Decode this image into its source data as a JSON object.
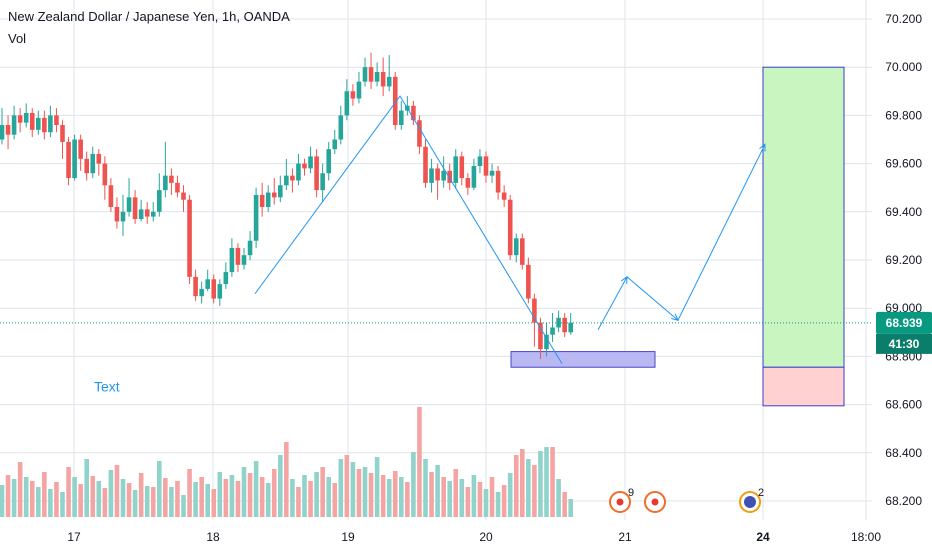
{
  "header": {
    "title": "New Zealand Dollar / Japanese Yen, 1h, OANDA",
    "indicator": "Vol"
  },
  "price_badge": {
    "value": "68.939",
    "countdown": "41:30"
  },
  "annotation": {
    "text": "Text"
  },
  "event_markers": [
    {
      "icon": "flag-event-icon",
      "count": "9"
    },
    {
      "icon": "target-event-icon",
      "count": ""
    },
    {
      "icon": "avatar-event-icon",
      "count": "2"
    }
  ],
  "colors": {
    "up": "#26a69a",
    "down": "#ef5350",
    "vol_up": "#8fd3cb",
    "vol_down": "#f5a4a4",
    "drawing": "#2196f3",
    "badge": "#089981",
    "grid": "#e0e3eb",
    "target": "#c8f5c0",
    "stop": "#ffd1d1",
    "zone": "#b9b8f2"
  },
  "chart_data": {
    "type": "candlestick",
    "symbol": "NZDJPY",
    "interval": "1h",
    "x_tick_labels": [
      "17",
      "18",
      "19",
      "20",
      "21",
      "24",
      "18:00"
    ],
    "y_tick_labels": [
      "70.200",
      "70.000",
      "69.800",
      "69.600",
      "69.400",
      "69.200",
      "69.000",
      "68.800",
      "68.600",
      "68.400",
      "68.200"
    ],
    "ylim": [
      68.1,
      70.2
    ],
    "last_price": 68.939,
    "grid": true,
    "candles": [
      [
        69.7,
        69.76,
        69.83,
        69.68
      ],
      [
        69.76,
        69.72,
        69.8,
        69.66
      ],
      [
        69.72,
        69.8,
        69.84,
        69.7
      ],
      [
        69.8,
        69.77,
        69.83,
        69.73
      ],
      [
        69.77,
        69.81,
        69.85,
        69.75
      ],
      [
        69.81,
        69.74,
        69.83,
        69.71
      ],
      [
        69.74,
        69.79,
        69.82,
        69.72
      ],
      [
        69.79,
        69.73,
        69.82,
        69.7
      ],
      [
        69.73,
        69.8,
        69.84,
        69.71
      ],
      [
        69.8,
        69.76,
        69.83,
        69.73
      ],
      [
        69.76,
        69.69,
        69.78,
        69.62
      ],
      [
        69.69,
        69.54,
        69.71,
        69.51
      ],
      [
        69.54,
        69.7,
        69.72,
        69.53
      ],
      [
        69.7,
        69.62,
        69.72,
        69.57
      ],
      [
        69.62,
        69.56,
        69.65,
        69.53
      ],
      [
        69.56,
        69.64,
        69.67,
        69.54
      ],
      [
        69.64,
        69.6,
        69.66,
        69.55
      ],
      [
        69.6,
        69.51,
        69.63,
        69.45
      ],
      [
        69.51,
        69.42,
        69.54,
        69.4
      ],
      [
        69.42,
        69.36,
        69.46,
        69.33
      ],
      [
        69.36,
        69.4,
        69.47,
        69.3
      ],
      [
        69.4,
        69.46,
        69.54,
        69.38
      ],
      [
        69.46,
        69.37,
        69.49,
        69.35
      ],
      [
        69.37,
        69.41,
        69.45,
        69.36
      ],
      [
        69.41,
        69.38,
        69.44,
        69.35
      ],
      [
        69.38,
        69.4,
        69.44,
        69.36
      ],
      [
        69.4,
        69.49,
        69.56,
        69.38
      ],
      [
        69.49,
        69.55,
        69.69,
        69.46
      ],
      [
        69.55,
        69.52,
        69.58,
        69.47
      ],
      [
        69.52,
        69.48,
        69.55,
        69.46
      ],
      [
        69.48,
        69.45,
        69.51,
        69.4
      ],
      [
        69.45,
        69.13,
        69.47,
        69.1
      ],
      [
        69.13,
        69.05,
        69.16,
        69.03
      ],
      [
        69.05,
        69.08,
        69.11,
        69.02
      ],
      [
        69.08,
        69.12,
        69.16,
        69.07
      ],
      [
        69.12,
        69.04,
        69.14,
        69.02
      ],
      [
        69.04,
        69.1,
        69.12,
        69.01
      ],
      [
        69.1,
        69.15,
        69.19,
        69.08
      ],
      [
        69.15,
        69.25,
        69.29,
        69.13
      ],
      [
        69.25,
        69.18,
        69.27,
        69.15
      ],
      [
        69.18,
        69.22,
        69.25,
        69.16
      ],
      [
        69.22,
        69.28,
        69.32,
        69.2
      ],
      [
        69.28,
        69.47,
        69.5,
        69.25
      ],
      [
        69.47,
        69.42,
        69.52,
        69.38
      ],
      [
        69.42,
        69.48,
        69.51,
        69.4
      ],
      [
        69.48,
        69.46,
        69.54,
        69.43
      ],
      [
        69.46,
        69.51,
        69.55,
        69.44
      ],
      [
        69.51,
        69.55,
        69.62,
        69.49
      ],
      [
        69.55,
        69.53,
        69.58,
        69.48
      ],
      [
        69.53,
        69.6,
        69.64,
        69.51
      ],
      [
        69.6,
        69.58,
        69.62,
        69.55
      ],
      [
        69.58,
        69.63,
        69.67,
        69.56
      ],
      [
        69.63,
        69.49,
        69.66,
        69.46
      ],
      [
        69.49,
        69.56,
        69.6,
        69.44
      ],
      [
        69.56,
        69.66,
        69.69,
        69.53
      ],
      [
        69.66,
        69.7,
        69.74,
        69.64
      ],
      [
        69.7,
        69.8,
        69.84,
        69.68
      ],
      [
        69.8,
        69.9,
        69.95,
        69.78
      ],
      [
        69.9,
        69.87,
        69.93,
        69.84
      ],
      [
        69.87,
        69.94,
        69.98,
        69.85
      ],
      [
        69.94,
        70.0,
        70.04,
        69.92
      ],
      [
        70.0,
        69.94,
        70.06,
        69.91
      ],
      [
        69.94,
        69.98,
        70.02,
        69.92
      ],
      [
        69.98,
        69.92,
        70.04,
        69.88
      ],
      [
        69.92,
        69.96,
        70.05,
        69.9
      ],
      [
        69.96,
        69.76,
        69.98,
        69.74
      ],
      [
        69.76,
        69.82,
        69.86,
        69.74
      ],
      [
        69.82,
        69.84,
        69.88,
        69.8
      ],
      [
        69.84,
        69.78,
        69.86,
        69.76
      ],
      [
        69.78,
        69.67,
        69.8,
        69.64
      ],
      [
        69.67,
        69.52,
        69.7,
        69.5
      ],
      [
        69.52,
        69.58,
        69.62,
        69.48
      ],
      [
        69.58,
        69.53,
        69.6,
        69.45
      ],
      [
        69.53,
        69.57,
        69.63,
        69.5
      ],
      [
        69.57,
        69.52,
        69.6,
        69.49
      ],
      [
        69.52,
        69.63,
        69.66,
        69.5
      ],
      [
        69.63,
        69.54,
        69.65,
        69.51
      ],
      [
        69.54,
        69.5,
        69.56,
        69.47
      ],
      [
        69.5,
        69.59,
        69.62,
        69.49
      ],
      [
        69.59,
        69.63,
        69.66,
        69.56
      ],
      [
        69.63,
        69.55,
        69.65,
        69.52
      ],
      [
        69.55,
        69.57,
        69.6,
        69.52
      ],
      [
        69.57,
        69.48,
        69.59,
        69.45
      ],
      [
        69.48,
        69.45,
        69.51,
        69.42
      ],
      [
        69.45,
        69.22,
        69.47,
        69.2
      ],
      [
        69.22,
        69.29,
        69.31,
        69.19
      ],
      [
        69.29,
        69.18,
        69.31,
        69.16
      ],
      [
        69.18,
        69.04,
        69.21,
        69.02
      ],
      [
        69.04,
        68.94,
        69.06,
        68.84
      ],
      [
        68.94,
        68.83,
        68.96,
        68.79
      ],
      [
        68.83,
        68.89,
        68.94,
        68.8
      ],
      [
        68.89,
        68.92,
        68.98,
        68.86
      ],
      [
        68.92,
        68.96,
        68.99,
        68.9
      ],
      [
        68.96,
        68.9,
        68.98,
        68.88
      ],
      [
        68.9,
        68.94,
        68.98,
        68.89
      ]
    ],
    "volume": [
      [
        32,
        1
      ],
      [
        42,
        0
      ],
      [
        38,
        1
      ],
      [
        55,
        0
      ],
      [
        40,
        1
      ],
      [
        36,
        0
      ],
      [
        30,
        1
      ],
      [
        45,
        0
      ],
      [
        28,
        1
      ],
      [
        35,
        0
      ],
      [
        25,
        1
      ],
      [
        50,
        0
      ],
      [
        40,
        1
      ],
      [
        33,
        0
      ],
      [
        58,
        1
      ],
      [
        41,
        0
      ],
      [
        36,
        1
      ],
      [
        29,
        0
      ],
      [
        47,
        1
      ],
      [
        52,
        0
      ],
      [
        38,
        1
      ],
      [
        34,
        0
      ],
      [
        27,
        1
      ],
      [
        44,
        0
      ],
      [
        31,
        1
      ],
      [
        30,
        0
      ],
      [
        56,
        1
      ],
      [
        39,
        0
      ],
      [
        30,
        1
      ],
      [
        36,
        0
      ],
      [
        22,
        1
      ],
      [
        48,
        0
      ],
      [
        35,
        1
      ],
      [
        40,
        0
      ],
      [
        33,
        1
      ],
      [
        28,
        0
      ],
      [
        45,
        1
      ],
      [
        38,
        0
      ],
      [
        42,
        1
      ],
      [
        36,
        0
      ],
      [
        50,
        1
      ],
      [
        44,
        0
      ],
      [
        56,
        1
      ],
      [
        40,
        0
      ],
      [
        34,
        1
      ],
      [
        48,
        0
      ],
      [
        62,
        1
      ],
      [
        75,
        0
      ],
      [
        38,
        1
      ],
      [
        30,
        0
      ],
      [
        42,
        1
      ],
      [
        36,
        0
      ],
      [
        45,
        1
      ],
      [
        50,
        0
      ],
      [
        40,
        1
      ],
      [
        34,
        0
      ],
      [
        58,
        1
      ],
      [
        62,
        0
      ],
      [
        55,
        1
      ],
      [
        48,
        0
      ],
      [
        50,
        1
      ],
      [
        44,
        0
      ],
      [
        60,
        1
      ],
      [
        42,
        0
      ],
      [
        38,
        1
      ],
      [
        46,
        0
      ],
      [
        40,
        1
      ],
      [
        35,
        0
      ],
      [
        65,
        1
      ],
      [
        110,
        0
      ],
      [
        58,
        1
      ],
      [
        45,
        0
      ],
      [
        52,
        1
      ],
      [
        40,
        0
      ],
      [
        36,
        1
      ],
      [
        48,
        0
      ],
      [
        38,
        1
      ],
      [
        30,
        0
      ],
      [
        42,
        1
      ],
      [
        35,
        0
      ],
      [
        28,
        1
      ],
      [
        40,
        0
      ],
      [
        25,
        1
      ],
      [
        32,
        0
      ],
      [
        44,
        1
      ],
      [
        62,
        0
      ],
      [
        68,
        0
      ],
      [
        58,
        1
      ],
      [
        52,
        0
      ],
      [
        66,
        1
      ],
      [
        70,
        1
      ],
      [
        70,
        0
      ],
      [
        38,
        1
      ],
      [
        25,
        0
      ],
      [
        18,
        1
      ]
    ],
    "drawings": {
      "zone": {
        "from": "20",
        "price_range": [
          68.755,
          68.82
        ]
      },
      "long_position": {
        "entry": 68.755,
        "target": 70.0,
        "stop": 68.595
      },
      "annotation_price": 68.67
    }
  }
}
